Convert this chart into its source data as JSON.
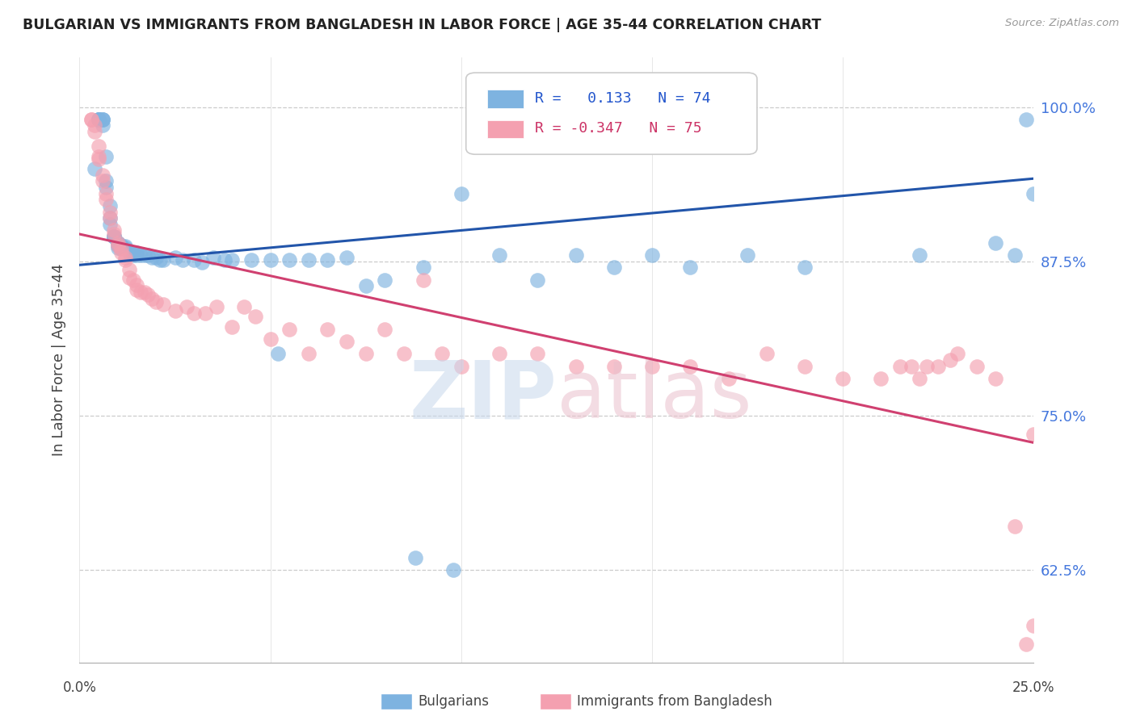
{
  "title": "BULGARIAN VS IMMIGRANTS FROM BANGLADESH IN LABOR FORCE | AGE 35-44 CORRELATION CHART",
  "source": "Source: ZipAtlas.com",
  "ylabel": "In Labor Force | Age 35-44",
  "ytick_labels": [
    "100.0%",
    "87.5%",
    "75.0%",
    "62.5%"
  ],
  "ytick_values": [
    1.0,
    0.875,
    0.75,
    0.625
  ],
  "xlim": [
    0.0,
    0.25
  ],
  "ylim": [
    0.55,
    1.04
  ],
  "legend_R_blue": "0.133",
  "legend_N_blue": "74",
  "legend_R_pink": "-0.347",
  "legend_N_pink": "75",
  "blue_color": "#7EB3E0",
  "pink_color": "#F4A0B0",
  "line_blue_color": "#2255AA",
  "line_pink_color": "#D04070",
  "blue_line_x": [
    0.0,
    0.25
  ],
  "blue_line_y": [
    0.872,
    0.942
  ],
  "pink_line_x": [
    0.0,
    0.25
  ],
  "pink_line_y": [
    0.897,
    0.728
  ],
  "blue_scatter_x": [
    0.004,
    0.005,
    0.005,
    0.005,
    0.005,
    0.005,
    0.006,
    0.006,
    0.006,
    0.006,
    0.007,
    0.007,
    0.007,
    0.008,
    0.008,
    0.008,
    0.009,
    0.009,
    0.009,
    0.01,
    0.01,
    0.01,
    0.01,
    0.011,
    0.011,
    0.011,
    0.012,
    0.012,
    0.013,
    0.013,
    0.014,
    0.014,
    0.015,
    0.015,
    0.016,
    0.017,
    0.018,
    0.019,
    0.02,
    0.021,
    0.022,
    0.025,
    0.027,
    0.03,
    0.032,
    0.035,
    0.038,
    0.04,
    0.045,
    0.05,
    0.055,
    0.06,
    0.065,
    0.07,
    0.075,
    0.08,
    0.09,
    0.1,
    0.052,
    0.088,
    0.098,
    0.11,
    0.12,
    0.13,
    0.14,
    0.15,
    0.16,
    0.175,
    0.19,
    0.22,
    0.24,
    0.245,
    0.248,
    0.25
  ],
  "blue_scatter_y": [
    0.95,
    0.99,
    0.99,
    0.99,
    0.99,
    0.99,
    0.99,
    0.99,
    0.99,
    0.985,
    0.96,
    0.94,
    0.935,
    0.92,
    0.91,
    0.905,
    0.895,
    0.895,
    0.895,
    0.89,
    0.89,
    0.888,
    0.886,
    0.888,
    0.887,
    0.885,
    0.886,
    0.887,
    0.883,
    0.882,
    0.882,
    0.88,
    0.882,
    0.88,
    0.88,
    0.88,
    0.88,
    0.878,
    0.878,
    0.876,
    0.876,
    0.878,
    0.876,
    0.876,
    0.874,
    0.878,
    0.876,
    0.876,
    0.876,
    0.876,
    0.876,
    0.876,
    0.876,
    0.878,
    0.855,
    0.86,
    0.87,
    0.93,
    0.8,
    0.635,
    0.625,
    0.88,
    0.86,
    0.88,
    0.87,
    0.88,
    0.87,
    0.88,
    0.87,
    0.88,
    0.89,
    0.88,
    0.99,
    0.93
  ],
  "pink_scatter_x": [
    0.003,
    0.003,
    0.004,
    0.004,
    0.005,
    0.005,
    0.005,
    0.006,
    0.006,
    0.007,
    0.007,
    0.008,
    0.008,
    0.009,
    0.009,
    0.01,
    0.01,
    0.011,
    0.011,
    0.012,
    0.012,
    0.013,
    0.013,
    0.014,
    0.015,
    0.015,
    0.016,
    0.017,
    0.018,
    0.019,
    0.02,
    0.022,
    0.025,
    0.028,
    0.03,
    0.033,
    0.036,
    0.04,
    0.043,
    0.046,
    0.05,
    0.055,
    0.06,
    0.065,
    0.07,
    0.075,
    0.08,
    0.085,
    0.09,
    0.095,
    0.1,
    0.11,
    0.12,
    0.13,
    0.14,
    0.15,
    0.16,
    0.17,
    0.18,
    0.19,
    0.2,
    0.21,
    0.215,
    0.218,
    0.22,
    0.222,
    0.225,
    0.228,
    0.23,
    0.235,
    0.24,
    0.25,
    0.25,
    0.248,
    0.245
  ],
  "pink_scatter_y": [
    0.99,
    0.99,
    0.985,
    0.98,
    0.968,
    0.96,
    0.958,
    0.945,
    0.94,
    0.93,
    0.925,
    0.915,
    0.91,
    0.9,
    0.897,
    0.89,
    0.888,
    0.885,
    0.882,
    0.878,
    0.876,
    0.868,
    0.862,
    0.86,
    0.856,
    0.852,
    0.85,
    0.85,
    0.848,
    0.845,
    0.842,
    0.84,
    0.835,
    0.838,
    0.833,
    0.833,
    0.838,
    0.822,
    0.838,
    0.83,
    0.812,
    0.82,
    0.8,
    0.82,
    0.81,
    0.8,
    0.82,
    0.8,
    0.86,
    0.8,
    0.79,
    0.8,
    0.8,
    0.79,
    0.79,
    0.79,
    0.79,
    0.78,
    0.8,
    0.79,
    0.78,
    0.78,
    0.79,
    0.79,
    0.78,
    0.79,
    0.79,
    0.795,
    0.8,
    0.79,
    0.78,
    0.735,
    0.58,
    0.565,
    0.66
  ]
}
